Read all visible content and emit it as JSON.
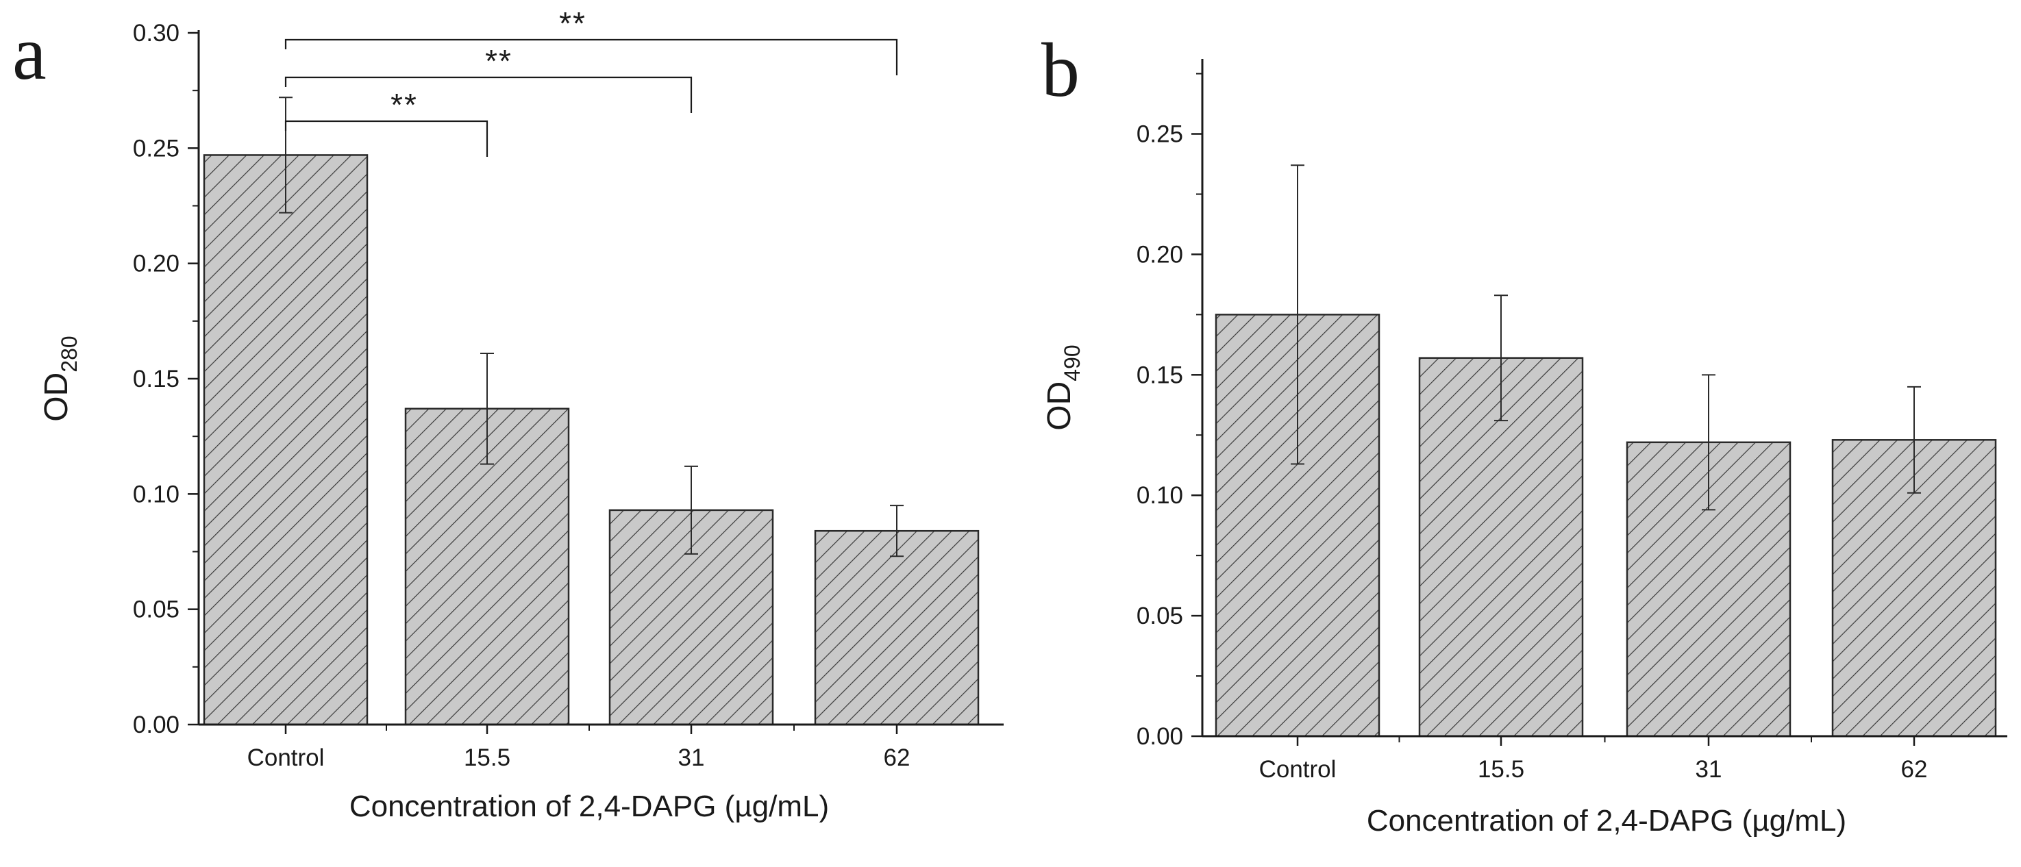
{
  "chart_data": [
    {
      "type": "bar",
      "panel_label": "a",
      "categories": [
        "Control",
        "15.5",
        "31",
        "62"
      ],
      "values": [
        0.247,
        0.137,
        0.093,
        0.084
      ],
      "error_bars": [
        0.025,
        0.024,
        0.019,
        0.011
      ],
      "ylabel_main": "OD",
      "ylabel_sub": "280",
      "xlabel": "Concentration of 2,4-DAPG (µg/mL)",
      "ylim": [
        0,
        0.3
      ],
      "yticks": [
        "0.00",
        "0.05",
        "0.10",
        "0.15",
        "0.20",
        "0.25",
        "0.30"
      ],
      "significance": [
        {
          "from": "Control",
          "to": "15.5",
          "label": "**"
        },
        {
          "from": "Control",
          "to": "31",
          "label": "**"
        },
        {
          "from": "Control",
          "to": "62",
          "label": "**"
        }
      ],
      "bar_fill": "#c9c9c9",
      "hatch_color": "#3a3a3a",
      "grid": false
    },
    {
      "type": "bar",
      "panel_label": "b",
      "categories": [
        "Control",
        "15.5",
        "31",
        "62"
      ],
      "values": [
        0.175,
        0.157,
        0.122,
        0.123
      ],
      "error_bars": [
        0.062,
        0.026,
        0.028,
        0.022
      ],
      "ylabel_main": "OD",
      "ylabel_sub": "490",
      "xlabel": "Concentration of 2,4-DAPG (µg/mL)",
      "ylim": [
        0,
        0.28
      ],
      "yticks": [
        "0.00",
        "0.05",
        "0.10",
        "0.15",
        "0.20",
        "0.25"
      ],
      "significance": [],
      "bar_fill": "#c9c9c9",
      "hatch_color": "#3a3a3a",
      "grid": false
    }
  ]
}
